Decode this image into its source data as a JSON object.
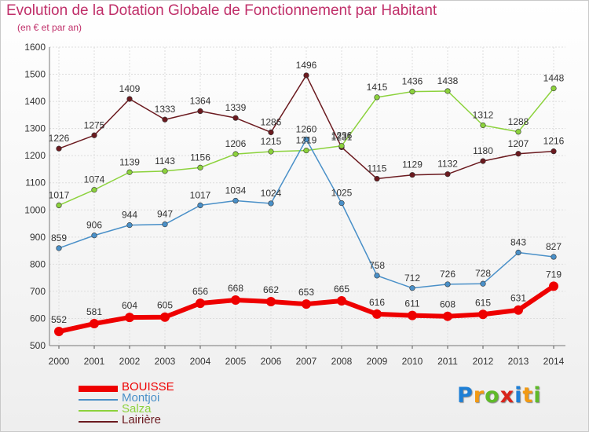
{
  "title": "Evolution de la Dotation Globale de Fonctionnement par Habitant",
  "subtitle": "(en € et par an)",
  "logo": {
    "letters": [
      "P",
      "r",
      "o",
      "x",
      "i",
      "t",
      "i"
    ],
    "colors": [
      "#1e7fd6",
      "#f29a13",
      "#5fba2a",
      "#d9241b",
      "#1e7fd6",
      "#f29a13",
      "#5fba2a"
    ]
  },
  "chart_data": {
    "type": "line",
    "title": "Evolution de la Dotation Globale de Fonctionnement par Habitant",
    "subtitle": "(en € et par an)",
    "xlabel": "",
    "ylabel": "",
    "ylim": [
      500,
      1600
    ],
    "yticks": [
      500,
      600,
      700,
      800,
      900,
      1000,
      1100,
      1200,
      1300,
      1400,
      1500,
      1600
    ],
    "grid": true,
    "legend": "bottom-left",
    "x": [
      "2000",
      "2001",
      "2002",
      "2003",
      "2004",
      "2005",
      "2006",
      "2007",
      "2008",
      "2009",
      "2010",
      "2011",
      "2012",
      "2013",
      "2014"
    ],
    "series": [
      {
        "name": "BOUISSE",
        "color": "#ee0000",
        "values": [
          552,
          581,
          604,
          605,
          656,
          668,
          662,
          653,
          665,
          616,
          611,
          608,
          615,
          631,
          719
        ]
      },
      {
        "name": "Montjoi",
        "color": "#4a90c8",
        "values": [
          859,
          906,
          944,
          947,
          1017,
          1034,
          1024,
          1260,
          1025,
          758,
          712,
          726,
          728,
          843,
          827
        ]
      },
      {
        "name": "Salza",
        "color": "#8cd23c",
        "values": [
          1017,
          1074,
          1139,
          1143,
          1156,
          1206,
          1215,
          1219,
          1236,
          1415,
          1436,
          1438,
          1312,
          1288,
          1448
        ]
      },
      {
        "name": "Lairière",
        "color": "#6b1a1f",
        "values": [
          1226,
          1275,
          1409,
          1333,
          1364,
          1339,
          1286,
          1496,
          1231,
          1115,
          1129,
          1132,
          1180,
          1207,
          1216
        ]
      }
    ]
  }
}
